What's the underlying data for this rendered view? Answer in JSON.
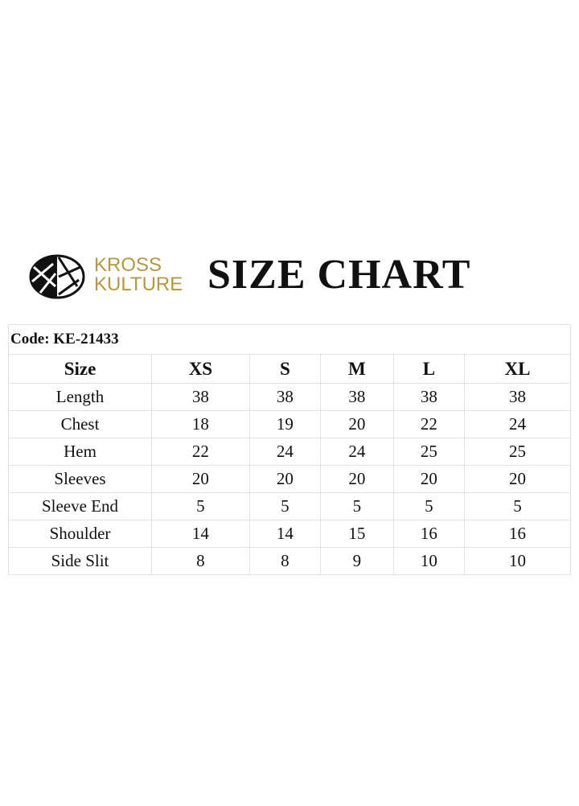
{
  "header": {
    "brand_line1": "KROSS",
    "brand_line2": "KULTURE",
    "title": "SIZE CHART",
    "brand_color": "#b8973a",
    "logo_icon": "kross-kulture-logo"
  },
  "table": {
    "code": "Code: KE-21433",
    "columns": [
      "Size",
      "XS",
      "S",
      "M",
      "L",
      "XL"
    ],
    "rows": [
      {
        "label": "Length",
        "values": [
          "38",
          "38",
          "38",
          "38",
          "38"
        ]
      },
      {
        "label": "Chest",
        "values": [
          "18",
          "19",
          "20",
          "22",
          "24"
        ]
      },
      {
        "label": "Hem",
        "values": [
          "22",
          "24",
          "24",
          "25",
          "25"
        ]
      },
      {
        "label": "Sleeves",
        "values": [
          "20",
          "20",
          "20",
          "20",
          "20"
        ]
      },
      {
        "label": "Sleeve End",
        "values": [
          "5",
          "5",
          "5",
          "5",
          "5"
        ]
      },
      {
        "label": "Shoulder",
        "values": [
          "14",
          "14",
          "15",
          "16",
          "16"
        ]
      },
      {
        "label": "Side Slit",
        "values": [
          "8",
          "8",
          "9",
          "10",
          "10"
        ]
      }
    ]
  }
}
